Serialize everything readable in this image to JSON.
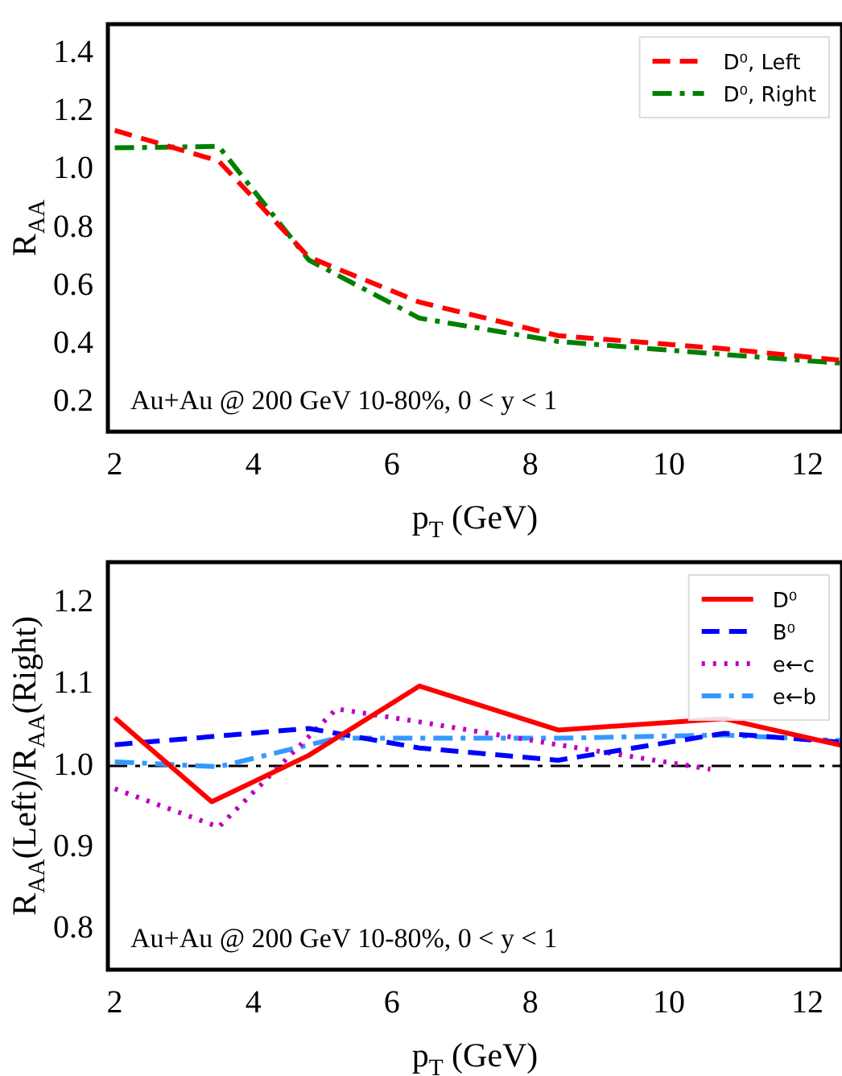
{
  "chart_data": [
    {
      "type": "line",
      "xlabel": "p$_{T}$ (GeV)",
      "ylabel": "R$_{AA}$",
      "xlim": [
        1.9,
        12.5
      ],
      "ylim": [
        0.1,
        1.5
      ],
      "xticks": [
        2,
        4,
        6,
        8,
        10,
        12
      ],
      "yticks": [
        {
          "value": 0.2,
          "label": "0.2"
        },
        {
          "value": 0.4,
          "label": "0.4"
        },
        {
          "value": 0.6,
          "label": "0.6"
        },
        {
          "value": 0.8,
          "label": "0.8"
        },
        {
          "value": 1.0,
          "label": "1.0"
        },
        {
          "value": 1.2,
          "label": "1.2"
        },
        {
          "value": 1.4,
          "label": "1.4"
        }
      ],
      "legend": "top right",
      "marker": "none",
      "annotations": [
        "Au+Au @ 200 GeV 10-80%, 0 < y < 1"
      ],
      "series": [
        {
          "name": "D⁰, Left",
          "color": "#ff0000",
          "line_style": "dashed",
          "x": [
            2,
            3.5,
            4.8,
            6.4,
            8.4,
            10.8,
            12.5
          ],
          "values": [
            1.135,
            1.03,
            0.7,
            0.545,
            0.43,
            0.385,
            0.345
          ]
        },
        {
          "name": "D⁰, Right",
          "color": "#008000",
          "line_style": "dashdot",
          "x": [
            2,
            3.5,
            4.8,
            6.4,
            8.4,
            10.8,
            12.5
          ],
          "values": [
            1.075,
            1.08,
            0.69,
            0.49,
            0.41,
            0.365,
            0.335
          ]
        }
      ]
    },
    {
      "type": "line",
      "xlabel": "p$_{T}$ (GeV)",
      "ylabel": "R$_{AA}$(Left)/R$_{AA}$(Right)",
      "xlim": [
        1.9,
        12.5
      ],
      "ylim": [
        0.75,
        1.25
      ],
      "xticks": [
        2,
        4,
        6,
        8,
        10,
        12
      ],
      "yticks": [
        {
          "value": 0.8,
          "label": "0.8"
        },
        {
          "value": 0.9,
          "label": "0.9"
        },
        {
          "value": 1.0,
          "label": "1.0"
        },
        {
          "value": 1.1,
          "label": "1.1"
        },
        {
          "value": 1.2,
          "label": "1.2"
        }
      ],
      "legend": "top right",
      "marker": "none",
      "annotations": [
        "Au+Au @ 200 GeV 10-80%, 0 < y < 1"
      ],
      "ref_lines": [
        {
          "axis": "y",
          "value": 1.0,
          "color": "#000000",
          "line_style": "dashdot"
        }
      ],
      "series": [
        {
          "name": "D⁰",
          "color": "#ff0000",
          "line_style": "solid",
          "x": [
            2,
            3.4,
            4.8,
            6.4,
            8.4,
            10.8,
            12.5
          ],
          "values": [
            1.059,
            0.956,
            1.013,
            1.098,
            1.044,
            1.058,
            1.025
          ]
        },
        {
          "name": "B⁰",
          "color": "#0000ff",
          "line_style": "dashed",
          "x": [
            2,
            4.8,
            6.4,
            8.4,
            10.8,
            12.5
          ],
          "values": [
            1.026,
            1.046,
            1.022,
            1.007,
            1.04,
            1.029
          ]
        },
        {
          "name": "e←c",
          "color": "#bf00bf",
          "line_style": "dotted",
          "x": [
            2,
            3.5,
            5.2,
            6.4,
            8.4,
            10.6
          ],
          "values": [
            0.972,
            0.925,
            1.07,
            1.054,
            1.026,
            0.996
          ]
        },
        {
          "name": "e←b",
          "color": "#3399ff",
          "line_style": "dashdot",
          "x": [
            2,
            3.5,
            5.2,
            8.4,
            10.8,
            12.5
          ],
          "values": [
            1.005,
            0.999,
            1.034,
            1.034,
            1.038,
            1.031
          ]
        }
      ]
    }
  ]
}
